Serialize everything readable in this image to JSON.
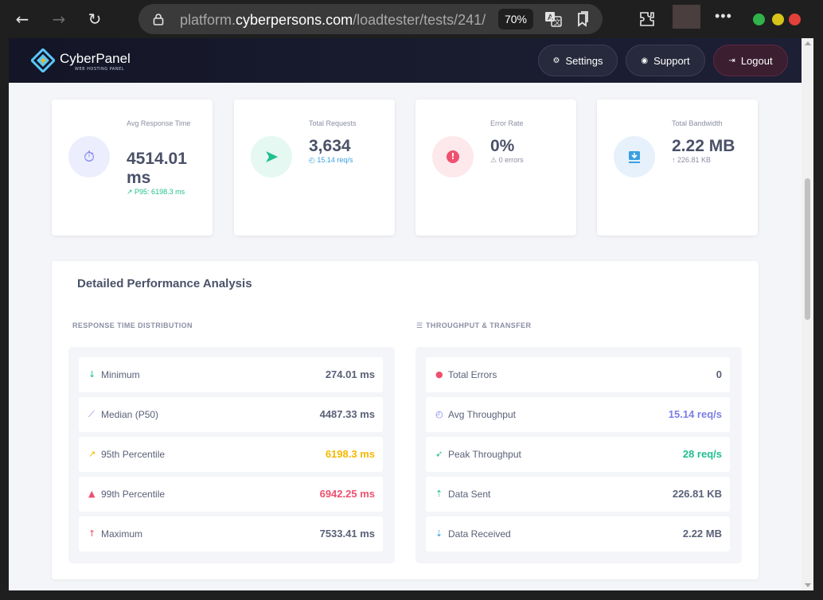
{
  "browser": {
    "url_prefix": "platform.",
    "url_host": "cyberpersons.com",
    "url_path": "/loadtester/tests/241/",
    "zoom": "70%"
  },
  "nav": {
    "brand": "CyberPanel",
    "brand_sub": "WEB HOSTING PANEL",
    "settings": "Settings",
    "support": "Support",
    "logout": "Logout"
  },
  "stats": {
    "avg_response": {
      "label": "Avg Response Time",
      "value": "4514.01 ms",
      "sub": "P95: 6198.3 ms",
      "color": "#7b7fe6"
    },
    "total_requests": {
      "label": "Total Requests",
      "value": "3,634",
      "sub": "15.14 req/s",
      "color": "#1fbf8f"
    },
    "error_rate": {
      "label": "Error Rate",
      "value": "0%",
      "sub": "0 errors",
      "color": "#f0506e"
    },
    "total_bandwidth": {
      "label": "Total Bandwidth",
      "value": "2.22 MB",
      "sub": "226.81 KB",
      "color": "#3aa0e0"
    }
  },
  "analysis": {
    "title": "Detailed Performance Analysis",
    "response_head": "RESPONSE TIME DISTRIBUTION",
    "throughput_head": "THROUGHPUT & TRANSFER",
    "response_rows": [
      {
        "label": "Minimum",
        "value": "274.01 ms",
        "icon": "arrow-down-icon",
        "icon_color": "#1fbf8f",
        "value_color": "#5a6178"
      },
      {
        "label": "Median (P50)",
        "value": "4487.33 ms",
        "icon": "chart-line-icon",
        "icon_color": "#7b7fe6",
        "value_color": "#5a6178"
      },
      {
        "label": "95th Percentile",
        "value": "6198.3 ms",
        "icon": "trend-up-icon",
        "icon_color": "#f5b800",
        "value_color": "#f5b800"
      },
      {
        "label": "99th Percentile",
        "value": "6942.25 ms",
        "icon": "warning-icon",
        "icon_color": "#f0506e",
        "value_color": "#f0506e"
      },
      {
        "label": "Maximum",
        "value": "7533.41 ms",
        "icon": "arrow-up-icon",
        "icon_color": "#f0506e",
        "value_color": "#5a6178"
      }
    ],
    "throughput_rows": [
      {
        "label": "Total Errors",
        "value": "0",
        "icon": "error-icon",
        "icon_color": "#f0506e",
        "value_color": "#5a6178"
      },
      {
        "label": "Avg Throughput",
        "value": "15.14 req/s",
        "icon": "gauge-icon",
        "icon_color": "#7b7fe6",
        "value_color": "#7b7fe6"
      },
      {
        "label": "Peak Throughput",
        "value": "28 req/s",
        "icon": "rocket-icon",
        "icon_color": "#1fbf8f",
        "value_color": "#1fbf8f"
      },
      {
        "label": "Data Sent",
        "value": "226.81 KB",
        "icon": "upload-icon",
        "icon_color": "#1fbf8f",
        "value_color": "#5a6178"
      },
      {
        "label": "Data Received",
        "value": "2.22 MB",
        "icon": "download-icon",
        "icon_color": "#3aa0e0",
        "value_color": "#5a6178"
      }
    ]
  }
}
